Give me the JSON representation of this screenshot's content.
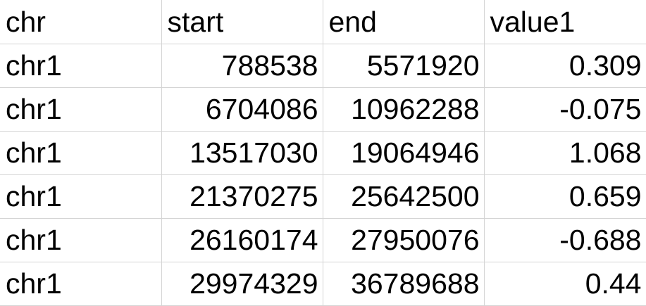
{
  "table": {
    "headers": [
      "chr",
      "start",
      "end",
      "value1"
    ],
    "rows": [
      [
        "chr1",
        "788538",
        "5571920",
        "0.309"
      ],
      [
        "chr1",
        "6704086",
        "10962288",
        "-0.075"
      ],
      [
        "chr1",
        "13517030",
        "19064946",
        "1.068"
      ],
      [
        "chr1",
        "21370275",
        "25642500",
        "0.659"
      ],
      [
        "chr1",
        "26160174",
        "27950076",
        "-0.688"
      ],
      [
        "chr1",
        "29974329",
        "36789688",
        "0.44"
      ]
    ]
  },
  "colors": {
    "gridline": "#d4d4d4",
    "text": "#000000",
    "background": "#ffffff"
  }
}
